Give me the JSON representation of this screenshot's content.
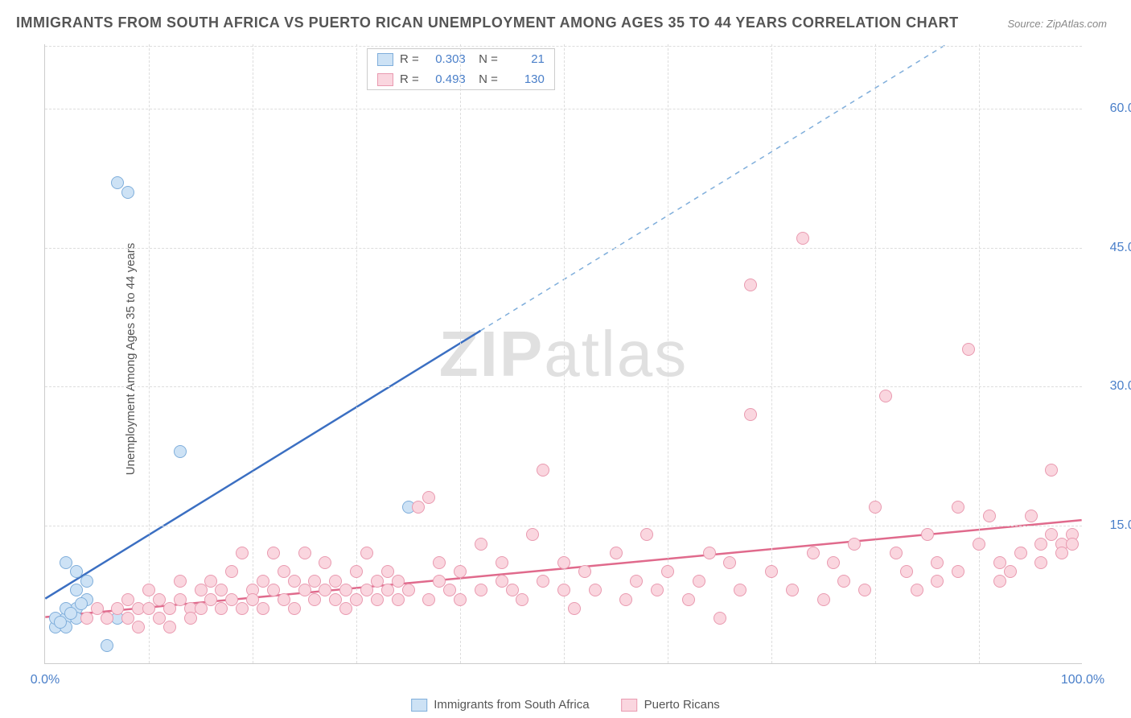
{
  "title": "IMMIGRANTS FROM SOUTH AFRICA VS PUERTO RICAN UNEMPLOYMENT AMONG AGES 35 TO 44 YEARS CORRELATION CHART",
  "source": "Source: ZipAtlas.com",
  "ylabel": "Unemployment Among Ages 35 to 44 years",
  "watermark_a": "ZIP",
  "watermark_b": "atlas",
  "chart": {
    "type": "scatter",
    "xlim": [
      0,
      100
    ],
    "ylim": [
      0,
      67
    ],
    "x_ticks": [
      {
        "v": 0,
        "label": "0.0%"
      },
      {
        "v": 100,
        "label": "100.0%"
      }
    ],
    "y_ticks": [
      {
        "v": 15,
        "label": "15.0%"
      },
      {
        "v": 30,
        "label": "30.0%"
      },
      {
        "v": 45,
        "label": "45.0%"
      },
      {
        "v": 60,
        "label": "60.0%"
      }
    ],
    "x_gridlines": [
      10,
      20,
      30,
      40,
      50,
      60,
      70,
      80,
      90
    ],
    "grid_color": "#dddddd",
    "background_color": "#ffffff",
    "point_radius": 8,
    "series": [
      {
        "name": "Immigrants from South Africa",
        "fill": "#cde2f5",
        "stroke": "#7faedb",
        "line_color": "#3b6fc2",
        "line_dash_color": "#7faedb",
        "R": "0.303",
        "N": "21",
        "trend": {
          "x1": 0,
          "y1": 7,
          "x2": 42,
          "y2": 36,
          "dash_x2": 100,
          "dash_y2": 76
        },
        "points": [
          [
            1,
            4
          ],
          [
            1,
            5
          ],
          [
            2,
            5
          ],
          [
            2,
            4
          ],
          [
            3,
            6
          ],
          [
            2,
            6
          ],
          [
            3,
            5
          ],
          [
            4,
            7
          ],
          [
            3,
            8
          ],
          [
            2,
            11
          ],
          [
            3,
            10
          ],
          [
            4,
            9
          ],
          [
            1.5,
            4.5
          ],
          [
            2.5,
            5.5
          ],
          [
            6,
            2
          ],
          [
            7,
            5
          ],
          [
            7,
            52
          ],
          [
            8,
            51
          ],
          [
            13,
            23
          ],
          [
            35,
            17
          ],
          [
            3.5,
            6.5
          ]
        ]
      },
      {
        "name": "Puerto Ricans",
        "fill": "#fad6df",
        "stroke": "#e99ab0",
        "line_color": "#e06a8c",
        "R": "0.493",
        "N": "130",
        "trend": {
          "x1": 0,
          "y1": 5,
          "x2": 100,
          "y2": 15.5
        },
        "points": [
          [
            4,
            5
          ],
          [
            5,
            6
          ],
          [
            6,
            5
          ],
          [
            7,
            6
          ],
          [
            8,
            5
          ],
          [
            8,
            7
          ],
          [
            9,
            6
          ],
          [
            9,
            4
          ],
          [
            10,
            6
          ],
          [
            10,
            8
          ],
          [
            11,
            5
          ],
          [
            11,
            7
          ],
          [
            12,
            6
          ],
          [
            12,
            4
          ],
          [
            13,
            7
          ],
          [
            13,
            9
          ],
          [
            14,
            6
          ],
          [
            14,
            5
          ],
          [
            15,
            8
          ],
          [
            15,
            6
          ],
          [
            16,
            7
          ],
          [
            16,
            9
          ],
          [
            17,
            6
          ],
          [
            17,
            8
          ],
          [
            18,
            7
          ],
          [
            18,
            10
          ],
          [
            19,
            12
          ],
          [
            19,
            6
          ],
          [
            20,
            8
          ],
          [
            20,
            7
          ],
          [
            21,
            9
          ],
          [
            21,
            6
          ],
          [
            22,
            12
          ],
          [
            22,
            8
          ],
          [
            23,
            7
          ],
          [
            23,
            10
          ],
          [
            24,
            9
          ],
          [
            24,
            6
          ],
          [
            25,
            12
          ],
          [
            25,
            8
          ],
          [
            26,
            7
          ],
          [
            26,
            9
          ],
          [
            27,
            8
          ],
          [
            27,
            11
          ],
          [
            28,
            7
          ],
          [
            28,
            9
          ],
          [
            29,
            8
          ],
          [
            29,
            6
          ],
          [
            30,
            10
          ],
          [
            30,
            7
          ],
          [
            31,
            8
          ],
          [
            31,
            12
          ],
          [
            32,
            9
          ],
          [
            32,
            7
          ],
          [
            33,
            8
          ],
          [
            33,
            10
          ],
          [
            34,
            7
          ],
          [
            34,
            9
          ],
          [
            35,
            8
          ],
          [
            36,
            17
          ],
          [
            37,
            18
          ],
          [
            37,
            7
          ],
          [
            38,
            9
          ],
          [
            38,
            11
          ],
          [
            39,
            8
          ],
          [
            40,
            7
          ],
          [
            40,
            10
          ],
          [
            42,
            8
          ],
          [
            42,
            13
          ],
          [
            44,
            9
          ],
          [
            44,
            11
          ],
          [
            45,
            8
          ],
          [
            46,
            7
          ],
          [
            47,
            14
          ],
          [
            48,
            9
          ],
          [
            48,
            21
          ],
          [
            50,
            8
          ],
          [
            50,
            11
          ],
          [
            51,
            6
          ],
          [
            52,
            10
          ],
          [
            53,
            8
          ],
          [
            55,
            12
          ],
          [
            56,
            7
          ],
          [
            57,
            9
          ],
          [
            58,
            14
          ],
          [
            59,
            8
          ],
          [
            60,
            10
          ],
          [
            62,
            7
          ],
          [
            63,
            9
          ],
          [
            64,
            12
          ],
          [
            65,
            5
          ],
          [
            66,
            11
          ],
          [
            67,
            8
          ],
          [
            68,
            27
          ],
          [
            68,
            41
          ],
          [
            70,
            10
          ],
          [
            72,
            8
          ],
          [
            73,
            46
          ],
          [
            74,
            12
          ],
          [
            75,
            7
          ],
          [
            76,
            11
          ],
          [
            77,
            9
          ],
          [
            78,
            13
          ],
          [
            79,
            8
          ],
          [
            80,
            17
          ],
          [
            81,
            29
          ],
          [
            82,
            12
          ],
          [
            83,
            10
          ],
          [
            84,
            8
          ],
          [
            85,
            14
          ],
          [
            86,
            11
          ],
          [
            86,
            9
          ],
          [
            88,
            17
          ],
          [
            88,
            10
          ],
          [
            89,
            34
          ],
          [
            90,
            13
          ],
          [
            91,
            16
          ],
          [
            92,
            11
          ],
          [
            92,
            9
          ],
          [
            93,
            10
          ],
          [
            94,
            12
          ],
          [
            95,
            16
          ],
          [
            96,
            13
          ],
          [
            96,
            11
          ],
          [
            97,
            21
          ],
          [
            97,
            14
          ],
          [
            98,
            13
          ],
          [
            98,
            12
          ],
          [
            99,
            14
          ],
          [
            99,
            13
          ]
        ]
      }
    ]
  },
  "legend_bottom": [
    "Immigrants from South Africa",
    "Puerto Ricans"
  ]
}
